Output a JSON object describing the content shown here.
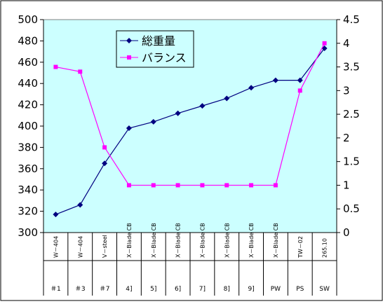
{
  "chart_data": {
    "type": "line",
    "title": "",
    "xlabel": "",
    "ylabel": "",
    "categories": [
      "W－404",
      "W－404",
      "V－steel",
      "X－Blade CB",
      "X－Blade CB",
      "X－Blade CB",
      "X－Blade CB",
      "X－Blade CB",
      "X－Blade CB",
      "X－Blade CB",
      "TW－02",
      "265.10"
    ],
    "groups": [
      "＃1",
      "＃3",
      "＃7",
      "4]",
      "5]",
      "6]",
      "7]",
      "8]",
      "9]",
      "PW",
      "PS",
      "SW"
    ],
    "y_left": {
      "min": 300,
      "max": 500,
      "step": 20
    },
    "y_right": {
      "min": 0,
      "max": 4.5,
      "step": 0.5
    },
    "y_left_ticks": [
      "300",
      "320",
      "340",
      "360",
      "380",
      "400",
      "420",
      "440",
      "460",
      "480",
      "500"
    ],
    "y_right_ticks": [
      "0",
      "0.5",
      "1",
      "1.5",
      "2",
      "2.5",
      "3",
      "3.5",
      "4",
      "4.5"
    ],
    "grid": false,
    "legend_position": "top-center",
    "plot_background": "#ccffff",
    "series": [
      {
        "name": "総重量",
        "axis": "left",
        "color": "#000080",
        "marker": "diamond",
        "values": [
          317,
          326,
          365,
          398,
          404,
          412,
          419,
          426,
          436,
          443,
          443,
          473
        ]
      },
      {
        "name": "バランス",
        "axis": "right",
        "color": "#ff00ff",
        "marker": "square",
        "values": [
          3.5,
          3.4,
          1.8,
          1.0,
          1.0,
          1.0,
          1.0,
          1.0,
          1.0,
          1.0,
          3.0,
          4.0
        ]
      }
    ]
  }
}
